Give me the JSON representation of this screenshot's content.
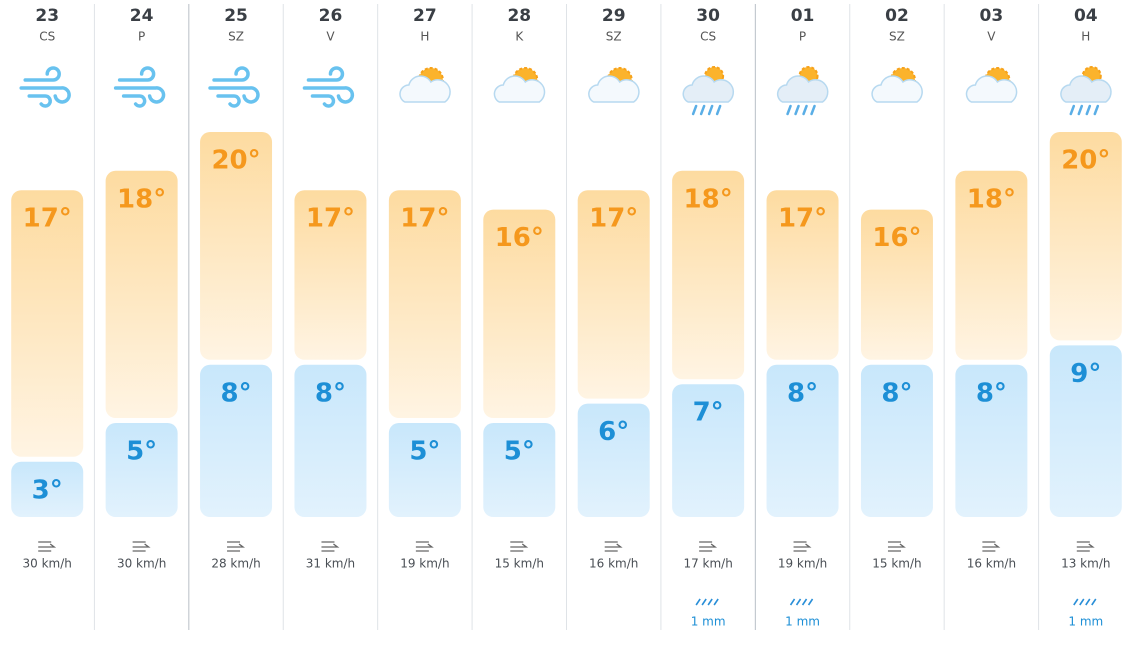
{
  "days": [
    {
      "date": "23",
      "weekday": "CS",
      "icon": "wind",
      "high": 17,
      "high_label": "17°",
      "low": 3,
      "low_label": "3°",
      "wind": "30 km/h"
    },
    {
      "date": "24",
      "weekday": "P",
      "icon": "wind",
      "high": 18,
      "high_label": "18°",
      "low": 5,
      "low_label": "5°",
      "wind": "30 km/h"
    },
    {
      "date": "25",
      "weekday": "SZ",
      "icon": "wind",
      "high": 20,
      "high_label": "20°",
      "low": 8,
      "low_label": "8°",
      "wind": "28 km/h"
    },
    {
      "date": "26",
      "weekday": "V",
      "icon": "wind",
      "high": 17,
      "high_label": "17°",
      "low": 8,
      "low_label": "8°",
      "wind": "31 km/h"
    },
    {
      "date": "27",
      "weekday": "H",
      "icon": "partly",
      "high": 17,
      "high_label": "17°",
      "low": 5,
      "low_label": "5°",
      "wind": "19 km/h"
    },
    {
      "date": "28",
      "weekday": "K",
      "icon": "partly",
      "high": 16,
      "high_label": "16°",
      "low": 5,
      "low_label": "5°",
      "wind": "15 km/h"
    },
    {
      "date": "29",
      "weekday": "SZ",
      "icon": "partly",
      "high": 17,
      "high_label": "17°",
      "low": 6,
      "low_label": "6°",
      "wind": "16 km/h"
    },
    {
      "date": "30",
      "weekday": "CS",
      "icon": "rain",
      "high": 18,
      "high_label": "18°",
      "low": 7,
      "low_label": "7°",
      "wind": "17 km/h",
      "rain": "1 mm"
    },
    {
      "date": "01",
      "weekday": "P",
      "icon": "rain",
      "high": 17,
      "high_label": "17°",
      "low": 8,
      "low_label": "8°",
      "wind": "19 km/h",
      "rain": "1 mm"
    },
    {
      "date": "02",
      "weekday": "SZ",
      "icon": "partly",
      "high": 16,
      "high_label": "16°",
      "low": 8,
      "low_label": "8°",
      "wind": "15 km/h"
    },
    {
      "date": "03",
      "weekday": "V",
      "icon": "partly",
      "high": 18,
      "high_label": "18°",
      "low": 8,
      "low_label": "8°",
      "wind": "16 km/h"
    },
    {
      "date": "04",
      "weekday": "H",
      "icon": "rain",
      "high": 20,
      "high_label": "20°",
      "low": 9,
      "low_label": "9°",
      "wind": "13 km/h",
      "rain": "1 mm"
    }
  ]
}
